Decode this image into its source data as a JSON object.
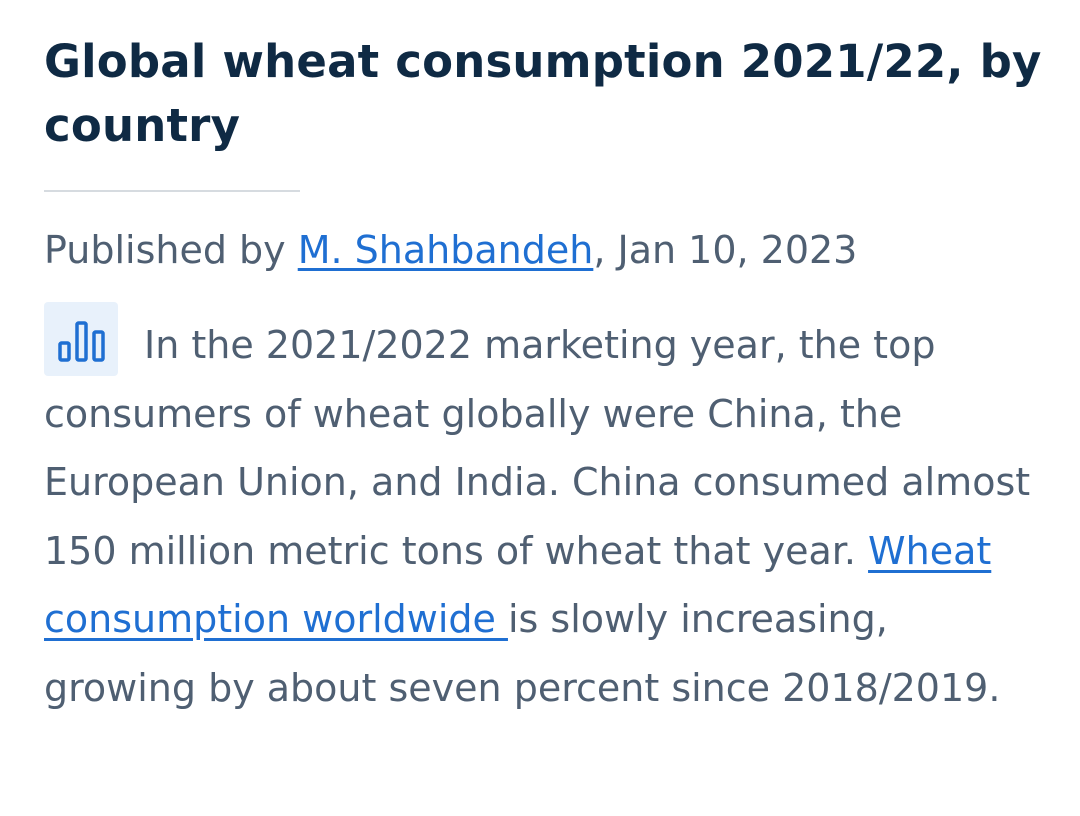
{
  "article": {
    "title": "Global wheat consumption 2021/22, by country",
    "byline": {
      "prefix": "Published by ",
      "author": "M. Shahbandeh",
      "date": ", Jan 10, 2023"
    },
    "icon": "bar-chart-icon",
    "description": {
      "text": "In the 2021/2022 marketing year, the top consumers of wheat globally were China, the European Union, and India. China consumed almost 150 million metric tons of wheat that year. ",
      "link_text": "Wheat consumption worldwide ",
      "suffix": "is slowly increasing, growing by about seven percent since 2018/2019."
    }
  },
  "colors": {
    "title": "#0f2a44",
    "body": "#4f5f72",
    "link": "#1f6fd2",
    "icon_bg": "#e8f1fb"
  }
}
